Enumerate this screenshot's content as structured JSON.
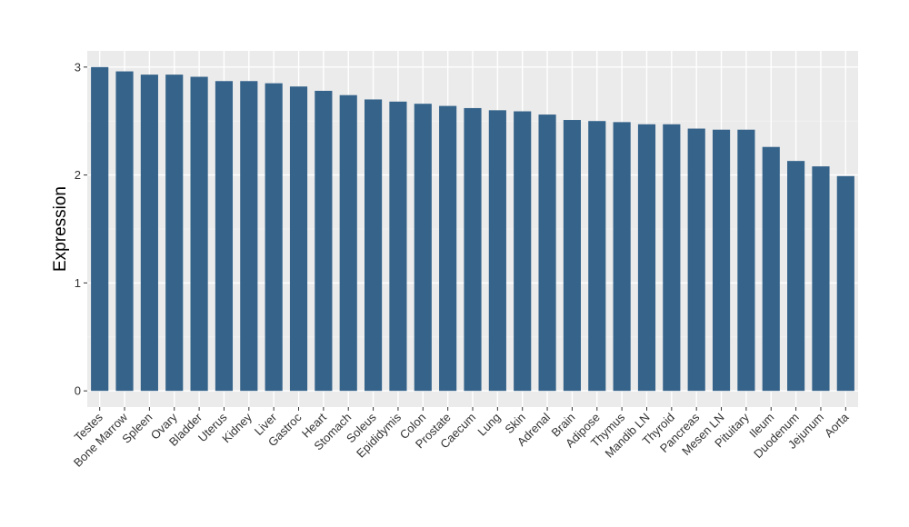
{
  "chart_data": {
    "type": "bar",
    "title": "",
    "xlabel": "",
    "ylabel": "Expression",
    "ylim": [
      -0.15,
      3.15
    ],
    "yticks": [
      0,
      1,
      2,
      3
    ],
    "grid": true,
    "legend": "none",
    "categories": [
      "Testes",
      "Bone Marrow",
      "Spleen",
      "Ovary",
      "Bladder",
      "Uterus",
      "Kidney",
      "Liver",
      "Gastroc",
      "Heart",
      "Stomach",
      "Soleus",
      "Epididymis",
      "Colon",
      "Prostate",
      "Caecum",
      "Lung",
      "Skin",
      "Adrenal",
      "Brain",
      "Adipose",
      "Thymus",
      "Mandib LN",
      "Thyroid",
      "Pancreas",
      "Mesen LN",
      "Pituitary",
      "Ileum",
      "Duodenum",
      "Jejunum",
      "Aorta"
    ],
    "values": [
      3.0,
      2.96,
      2.93,
      2.93,
      2.91,
      2.87,
      2.87,
      2.85,
      2.82,
      2.78,
      2.74,
      2.7,
      2.68,
      2.66,
      2.64,
      2.62,
      2.6,
      2.59,
      2.56,
      2.51,
      2.5,
      2.49,
      2.47,
      2.47,
      2.43,
      2.42,
      2.42,
      2.26,
      2.13,
      2.08,
      1.99
    ]
  },
  "colors": {
    "bar": "#35638A",
    "panel": "#EBEBEB",
    "grid_major": "#FFFFFF",
    "grid_minor": "#F4F4F4",
    "tick": "#333333"
  }
}
